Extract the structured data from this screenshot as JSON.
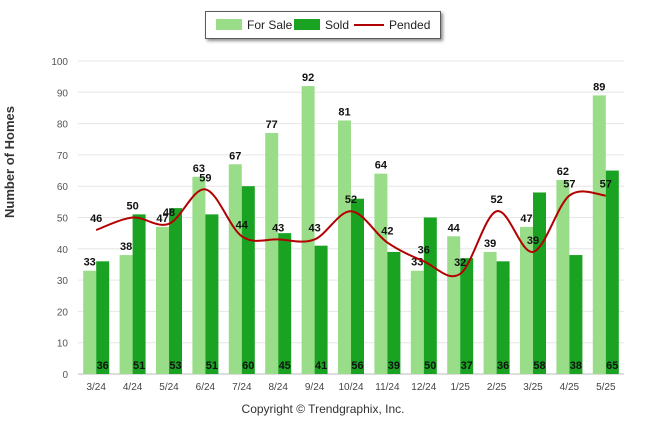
{
  "chart_data": {
    "type": "bar",
    "categories": [
      "3/24",
      "4/24",
      "5/24",
      "6/24",
      "7/24",
      "8/24",
      "9/24",
      "10/24",
      "11/24",
      "12/24",
      "1/25",
      "2/25",
      "3/25",
      "4/25",
      "5/25"
    ],
    "series": [
      {
        "name": "For Sale",
        "type": "bar",
        "color": "#99dd88",
        "values": [
          33,
          38,
          47,
          63,
          67,
          77,
          92,
          81,
          64,
          33,
          44,
          39,
          47,
          62,
          89
        ]
      },
      {
        "name": "Sold",
        "type": "bar",
        "color": "#1aa322",
        "values": [
          36,
          51,
          53,
          51,
          60,
          45,
          41,
          56,
          39,
          50,
          37,
          36,
          58,
          38,
          65
        ]
      },
      {
        "name": "Pended",
        "type": "line",
        "color": "#b30000",
        "values": [
          46,
          50,
          48,
          59,
          44,
          43,
          43,
          52,
          42,
          36,
          32,
          52,
          39,
          57,
          57
        ]
      }
    ],
    "ylabel": "Number of Homes",
    "ylim": [
      0,
      100
    ],
    "yticks": [
      0,
      10,
      20,
      30,
      40,
      50,
      60,
      70,
      80,
      90,
      100
    ],
    "grid": true,
    "legend": "top-center"
  },
  "footer": {
    "copyright": "Copyright © Trendgraphix, Inc."
  }
}
